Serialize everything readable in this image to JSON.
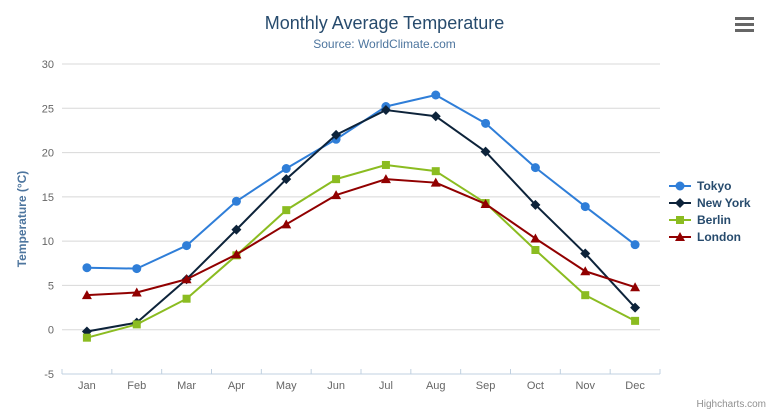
{
  "chart": {
    "title": "Monthly Average Temperature",
    "subtitle": "Source: WorldClimate.com",
    "credit": "Highcharts.com"
  },
  "icons": {
    "export_menu": "hamburger-icon"
  },
  "colors": {
    "title": "#274b6d",
    "subtitle": "#4d759e",
    "axis_label": "#666666",
    "axis_title": "#4d759e",
    "legend_text": "#274b6d",
    "gridline": "#d8d8d8",
    "axis_line": "#c0d0e0",
    "credit": "#909090",
    "menu_icon": "#666666",
    "background": "#ffffff"
  },
  "chart_data": {
    "type": "line",
    "title": "Monthly Average Temperature",
    "subtitle": "Source: WorldClimate.com",
    "xlabel": "",
    "ylabel": "Temperature (°C)",
    "ylim": [
      -5,
      30
    ],
    "yticks": [
      -5,
      0,
      5,
      10,
      15,
      20,
      25,
      30
    ],
    "grid": true,
    "legend_position": "right",
    "categories": [
      "Jan",
      "Feb",
      "Mar",
      "Apr",
      "May",
      "Jun",
      "Jul",
      "Aug",
      "Sep",
      "Oct",
      "Nov",
      "Dec"
    ],
    "series": [
      {
        "name": "Tokyo",
        "color": "#2f7ed8",
        "marker": "circle",
        "values": [
          7.0,
          6.9,
          9.5,
          14.5,
          18.2,
          21.5,
          25.2,
          26.5,
          23.3,
          18.3,
          13.9,
          9.6
        ]
      },
      {
        "name": "New York",
        "color": "#0d233a",
        "marker": "diamond",
        "values": [
          -0.2,
          0.8,
          5.7,
          11.3,
          17.0,
          22.0,
          24.8,
          24.1,
          20.1,
          14.1,
          8.6,
          2.5
        ]
      },
      {
        "name": "Berlin",
        "color": "#8bbc21",
        "marker": "square",
        "values": [
          -0.9,
          0.6,
          3.5,
          8.4,
          13.5,
          17.0,
          18.6,
          17.9,
          14.3,
          9.0,
          3.9,
          1.0
        ]
      },
      {
        "name": "London",
        "color": "#910000",
        "marker": "triangle",
        "values": [
          3.9,
          4.2,
          5.7,
          8.5,
          11.9,
          15.2,
          17.0,
          16.6,
          14.2,
          10.3,
          6.6,
          4.8
        ]
      }
    ]
  }
}
